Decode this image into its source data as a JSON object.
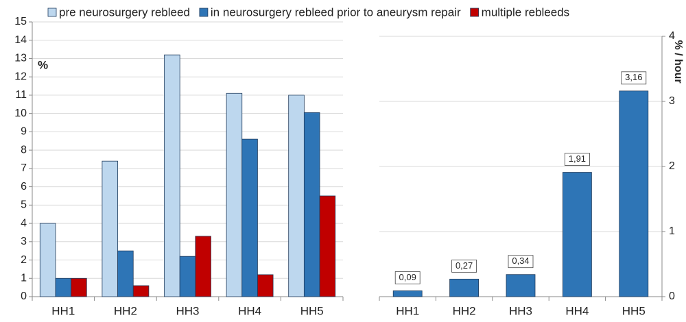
{
  "chart_data": [
    {
      "type": "bar",
      "y_label": "%",
      "categories": [
        "HH1",
        "HH2",
        "HH3",
        "HH4",
        "HH5"
      ],
      "series": [
        {
          "name": "pre neurosurgery rebleed",
          "color": "#bdd7ee",
          "values": [
            4,
            7.4,
            13.2,
            11.1,
            11
          ]
        },
        {
          "name": "in neurosurgery rebleed prior to aneurysm repair",
          "color": "#2e75b6",
          "values": [
            1,
            2.5,
            2.2,
            8.6,
            10.05
          ]
        },
        {
          "name": "multiple rebleeds",
          "color": "#c00000",
          "values": [
            1,
            0.6,
            3.3,
            1.2,
            5.5
          ]
        }
      ],
      "ylim": [
        0,
        15
      ],
      "yticks": [
        0,
        1,
        2,
        3,
        4,
        5,
        6,
        7,
        8,
        9,
        10,
        11,
        12,
        13,
        14,
        15
      ],
      "grid": true,
      "legend": "top"
    },
    {
      "type": "bar",
      "y_label": "% / hour",
      "categories": [
        "HH1",
        "HH2",
        "HH3",
        "HH4",
        "HH5"
      ],
      "values": [
        0.09,
        0.27,
        0.34,
        1.91,
        3.16
      ],
      "value_labels": [
        "0,09",
        "0,27",
        "0,34",
        "1,91",
        "3,16"
      ],
      "color": "#2e75b6",
      "ylim": [
        0,
        4
      ],
      "yticks": [
        0,
        1,
        2,
        3,
        4
      ],
      "grid": true,
      "axis_side": "right"
    }
  ]
}
